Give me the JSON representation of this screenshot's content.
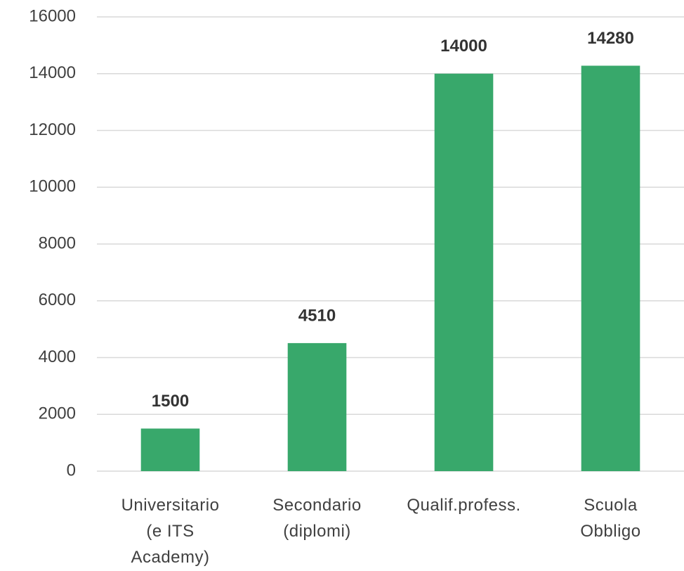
{
  "chart_data": {
    "type": "bar",
    "categories": [
      "Universitario (e ITS Academy)",
      "Secondario (diplomi)",
      "Qualif.profess.",
      "Scuola Obbligo"
    ],
    "values": [
      1500,
      4510,
      14000,
      14280
    ],
    "color": "#38a86b",
    "ylim": [
      0,
      16000
    ],
    "yticks": [
      0,
      2000,
      4000,
      6000,
      8000,
      10000,
      12000,
      14000,
      16000
    ],
    "grid": true
  }
}
